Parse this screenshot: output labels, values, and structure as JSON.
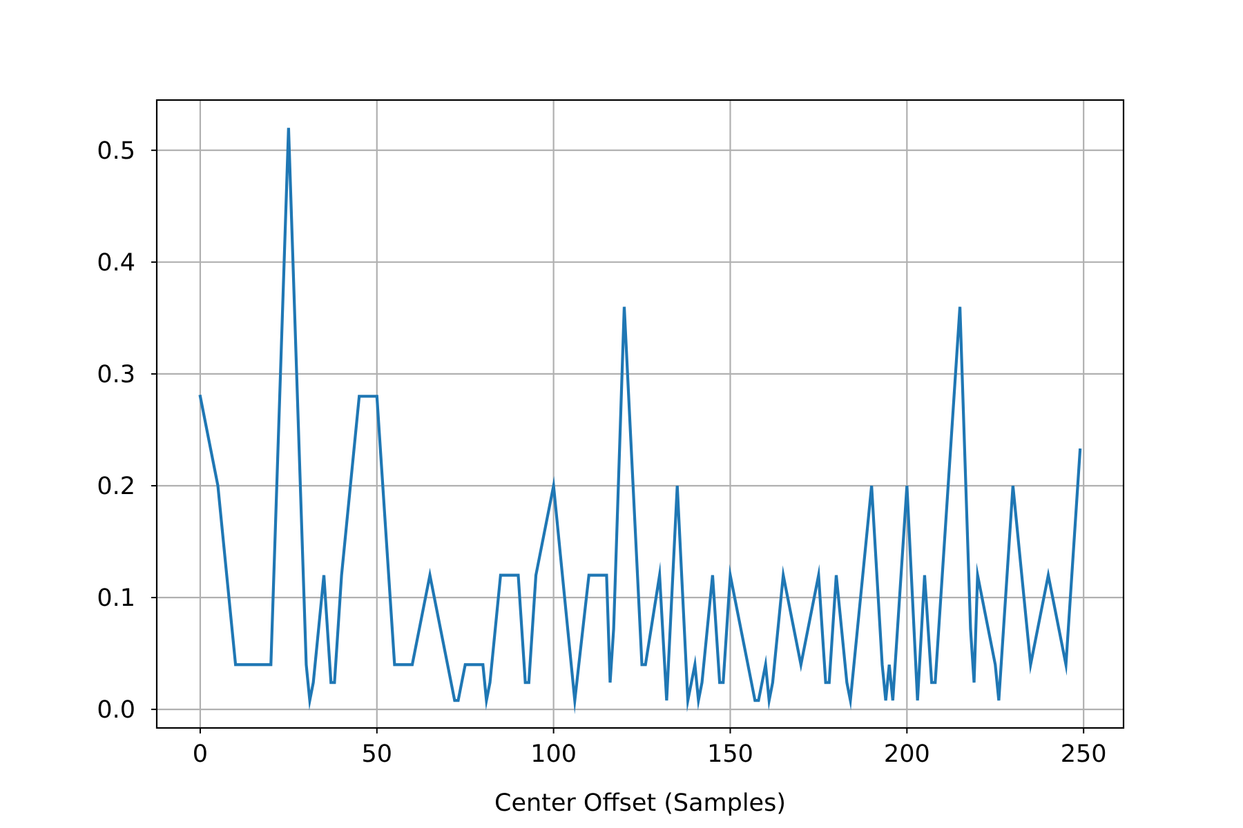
{
  "chart_data": {
    "type": "line",
    "title": "",
    "xlabel": "Center Offset (Samples)",
    "ylabel": "",
    "xlim": [
      -12.3,
      261.3
    ],
    "ylim": [
      -0.0166,
      0.5449
    ],
    "grid": true,
    "xticks": [
      0,
      50,
      100,
      150,
      200,
      250
    ],
    "xtick_labels": [
      "0",
      "50",
      "100",
      "150",
      "200",
      "250"
    ],
    "yticks": [
      0.0,
      0.1,
      0.2,
      0.3,
      0.4,
      0.5
    ],
    "ytick_labels": [
      "0.0",
      "0.1",
      "0.2",
      "0.3",
      "0.4",
      "0.5"
    ],
    "series": [
      {
        "color": "#1f77b4",
        "x": [
          0,
          5,
          10,
          15,
          20,
          25,
          30,
          31,
          32,
          35,
          37,
          38,
          40,
          45,
          50,
          55,
          60,
          65,
          70,
          72,
          73,
          75,
          77,
          80,
          81,
          82,
          85,
          87,
          90,
          92,
          93,
          95,
          100,
          105,
          106,
          110,
          112,
          115,
          116,
          117,
          120,
          125,
          126,
          130,
          132,
          135,
          138,
          140,
          141,
          142,
          145,
          147,
          148,
          150,
          155,
          157,
          158,
          160,
          161,
          162,
          165,
          170,
          175,
          177,
          178,
          180,
          183,
          184,
          190,
          193,
          194,
          195,
          196,
          200,
          203,
          205,
          207,
          208,
          215,
          218,
          219,
          220,
          225,
          226,
          230,
          235,
          240,
          245,
          249
        ],
        "y": [
          0.28,
          0.2,
          0.04,
          0.04,
          0.04,
          0.52,
          0.04,
          0.008,
          0.024,
          0.12,
          0.024,
          0.024,
          0.12,
          0.28,
          0.28,
          0.04,
          0.04,
          0.12,
          0.04,
          0.008,
          0.008,
          0.04,
          0.04,
          0.04,
          0.008,
          0.024,
          0.12,
          0.12,
          0.12,
          0.024,
          0.024,
          0.12,
          0.2,
          0.04,
          0.008,
          0.12,
          0.12,
          0.12,
          0.024,
          0.072,
          0.36,
          0.04,
          0.04,
          0.12,
          0.008,
          0.2,
          0.008,
          0.04,
          0.008,
          0.024,
          0.12,
          0.024,
          0.024,
          0.12,
          0.04,
          0.008,
          0.008,
          0.04,
          0.008,
          0.024,
          0.12,
          0.04,
          0.12,
          0.024,
          0.024,
          0.12,
          0.024,
          0.008,
          0.2,
          0.04,
          0.008,
          0.04,
          0.008,
          0.2,
          0.008,
          0.12,
          0.024,
          0.024,
          0.36,
          0.072,
          0.024,
          0.12,
          0.04,
          0.008,
          0.2,
          0.04,
          0.12,
          0.04,
          0.232
        ]
      }
    ]
  }
}
